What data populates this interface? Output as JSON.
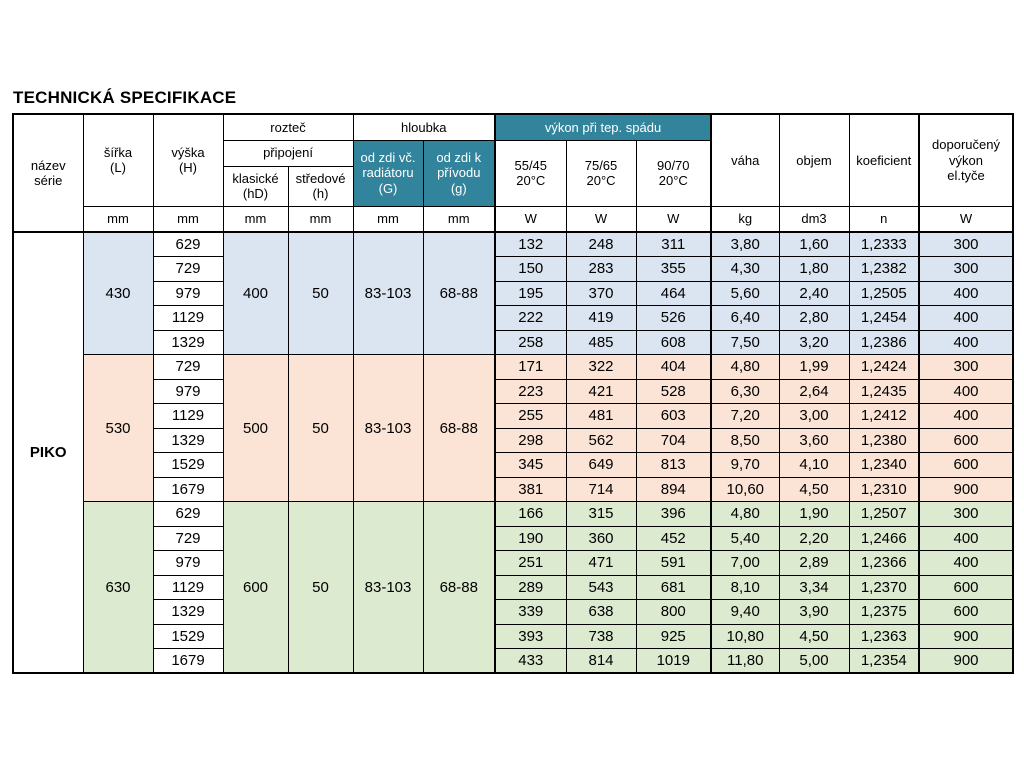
{
  "title": "TECHNICKÁ SPECIFIKACE",
  "series_name": "PIKO",
  "colors": {
    "header_teal": "#31849b",
    "group_430": "#dbe5f1",
    "group_530": "#fbe4d5",
    "group_630": "#dcead0",
    "white": "#ffffff",
    "border": "#000000"
  },
  "table": {
    "header": {
      "nazev_serie": "název\nsérie",
      "sirka": "šířka\n(L)",
      "vyska": "výška\n(H)",
      "roztec": "rozteč",
      "pripojeni": "připojení",
      "klasicke": "klasické\n(hD)",
      "stredove": "středové\n(h)",
      "hloubka": "hloubka",
      "od_zdi_g": "od zdi vč.\nradiátoru\n(G)",
      "od_zdi_g2": "od zdi k\npřívodu\n(g)",
      "vykon": "výkon při tep.  spádu",
      "t_5545": "55/45\n20°C",
      "t_7565": "75/65\n20°C",
      "t_9070": "90/70\n20°C",
      "vaha": "váha",
      "objem": "objem",
      "koeficient": "koeficient",
      "doporuceny": "doporučený\nvýkon\nel.tyče",
      "units": {
        "sirka": "mm",
        "vyska": "mm",
        "klasicke": "mm",
        "stredove": "mm",
        "od_zdi_g": "mm",
        "od_zdi_g2": "mm",
        "t_5545": "W",
        "t_7565": "W",
        "t_9070": "W",
        "vaha": "kg",
        "objem": "dm3",
        "koeficient": "n",
        "doporuceny": "W"
      }
    },
    "groups": [
      {
        "sirka": "430",
        "klasicke": "400",
        "stredove": "50",
        "hloubka_g": "83-103",
        "hloubka_g2": "68-88",
        "color": "#dbe5f1",
        "rows": [
          {
            "vyska": "629",
            "w5545": "132",
            "w7565": "248",
            "w9070": "311",
            "vaha": "3,80",
            "objem": "1,60",
            "koef": "1,2333",
            "dop": "300"
          },
          {
            "vyska": "729",
            "w5545": "150",
            "w7565": "283",
            "w9070": "355",
            "vaha": "4,30",
            "objem": "1,80",
            "koef": "1,2382",
            "dop": "300"
          },
          {
            "vyska": "979",
            "w5545": "195",
            "w7565": "370",
            "w9070": "464",
            "vaha": "5,60",
            "objem": "2,40",
            "koef": "1,2505",
            "dop": "400"
          },
          {
            "vyska": "1129",
            "w5545": "222",
            "w7565": "419",
            "w9070": "526",
            "vaha": "6,40",
            "objem": "2,80",
            "koef": "1,2454",
            "dop": "400"
          },
          {
            "vyska": "1329",
            "w5545": "258",
            "w7565": "485",
            "w9070": "608",
            "vaha": "7,50",
            "objem": "3,20",
            "koef": "1,2386",
            "dop": "400"
          }
        ]
      },
      {
        "sirka": "530",
        "klasicke": "500",
        "stredove": "50",
        "hloubka_g": "83-103",
        "hloubka_g2": "68-88",
        "color": "#fbe4d5",
        "rows": [
          {
            "vyska": "729",
            "w5545": "171",
            "w7565": "322",
            "w9070": "404",
            "vaha": "4,80",
            "objem": "1,99",
            "koef": "1,2424",
            "dop": "300"
          },
          {
            "vyska": "979",
            "w5545": "223",
            "w7565": "421",
            "w9070": "528",
            "vaha": "6,30",
            "objem": "2,64",
            "koef": "1,2435",
            "dop": "400"
          },
          {
            "vyska": "1129",
            "w5545": "255",
            "w7565": "481",
            "w9070": "603",
            "vaha": "7,20",
            "objem": "3,00",
            "koef": "1,2412",
            "dop": "400"
          },
          {
            "vyska": "1329",
            "w5545": "298",
            "w7565": "562",
            "w9070": "704",
            "vaha": "8,50",
            "objem": "3,60",
            "koef": "1,2380",
            "dop": "600"
          },
          {
            "vyska": "1529",
            "w5545": "345",
            "w7565": "649",
            "w9070": "813",
            "vaha": "9,70",
            "objem": "4,10",
            "koef": "1,2340",
            "dop": "600"
          },
          {
            "vyska": "1679",
            "w5545": "381",
            "w7565": "714",
            "w9070": "894",
            "vaha": "10,60",
            "objem": "4,50",
            "koef": "1,2310",
            "dop": "900"
          }
        ]
      },
      {
        "sirka": "630",
        "klasicke": "600",
        "stredove": "50",
        "hloubka_g": "83-103",
        "hloubka_g2": "68-88",
        "color": "#dcead0",
        "rows": [
          {
            "vyska": "629",
            "w5545": "166",
            "w7565": "315",
            "w9070": "396",
            "vaha": "4,80",
            "objem": "1,90",
            "koef": "1,2507",
            "dop": "300"
          },
          {
            "vyska": "729",
            "w5545": "190",
            "w7565": "360",
            "w9070": "452",
            "vaha": "5,40",
            "objem": "2,20",
            "koef": "1,2466",
            "dop": "400"
          },
          {
            "vyska": "979",
            "w5545": "251",
            "w7565": "471",
            "w9070": "591",
            "vaha": "7,00",
            "objem": "2,89",
            "koef": "1,2366",
            "dop": "400"
          },
          {
            "vyska": "1129",
            "w5545": "289",
            "w7565": "543",
            "w9070": "681",
            "vaha": "8,10",
            "objem": "3,34",
            "koef": "1,2370",
            "dop": "600"
          },
          {
            "vyska": "1329",
            "w5545": "339",
            "w7565": "638",
            "w9070": "800",
            "vaha": "9,40",
            "objem": "3,90",
            "koef": "1,2375",
            "dop": "600"
          },
          {
            "vyska": "1529",
            "w5545": "393",
            "w7565": "738",
            "w9070": "925",
            "vaha": "10,80",
            "objem": "4,50",
            "koef": "1,2363",
            "dop": "900"
          },
          {
            "vyska": "1679",
            "w5545": "433",
            "w7565": "814",
            "w9070": "1019",
            "vaha": "11,80",
            "objem": "5,00",
            "koef": "1,2354",
            "dop": "900"
          }
        ]
      }
    ]
  }
}
